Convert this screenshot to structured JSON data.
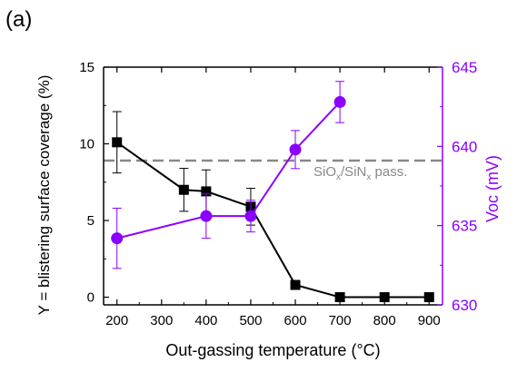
{
  "panel_label": "(a)",
  "chart_data": {
    "type": "line",
    "xlabel": "Out-gassing temperature (°C)",
    "ylabel_left": "Y = blistering surface coverage  (%)",
    "ylabel_right": "Voc (mV)",
    "x_ticks": [
      200,
      300,
      400,
      500,
      600,
      700,
      800,
      900
    ],
    "x_range": [
      170,
      930
    ],
    "y_left_ticks": [
      0,
      5,
      10,
      15
    ],
    "y_left_range": [
      -0.5,
      15
    ],
    "y_right_ticks": [
      630,
      635,
      640,
      645
    ],
    "y_right_range": [
      630,
      645
    ],
    "grid": false,
    "colors": {
      "left_series": "#000000",
      "right_series": "#8b00ff",
      "reference_line": "#888888"
    },
    "series": [
      {
        "axis": "left",
        "marker": "square",
        "x": [
          200,
          350,
          400,
          500,
          600,
          700,
          800,
          900
        ],
        "y": [
          10.1,
          7.0,
          6.9,
          5.9,
          0.8,
          0.0,
          0.0,
          0.0
        ],
        "err": [
          2.0,
          1.4,
          1.4,
          1.2,
          0,
          0,
          0,
          0
        ]
      },
      {
        "axis": "right",
        "marker": "circle",
        "x": [
          200,
          400,
          500,
          600,
          700
        ],
        "y": [
          634.2,
          635.6,
          635.6,
          639.8,
          642.8
        ],
        "err": [
          1.9,
          1.4,
          1.0,
          1.2,
          1.3
        ]
      }
    ],
    "reference_line": {
      "axis": "right",
      "y": 639.1,
      "style": "dashed",
      "label_parts": [
        {
          "text": "SiO",
          "sub": false
        },
        {
          "text": "x",
          "sub": true
        },
        {
          "text": "/SiN",
          "sub": false
        },
        {
          "text": "x",
          "sub": true
        },
        {
          "text": " pass.",
          "sub": false
        }
      ]
    }
  }
}
